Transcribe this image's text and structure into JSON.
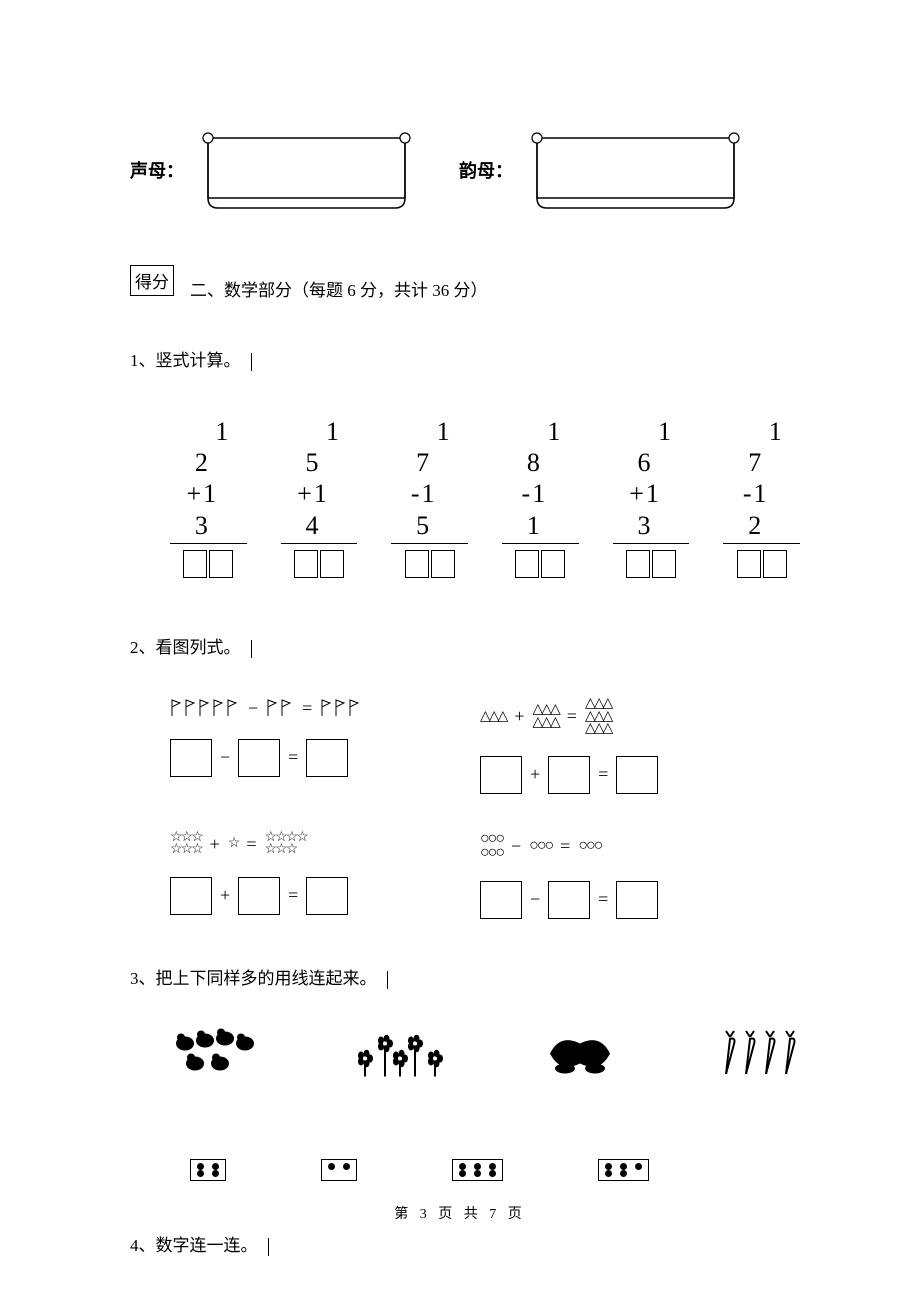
{
  "top": {
    "label_initials": "声母：",
    "label_finals": "韵母：",
    "scroll_stroke": "#000000",
    "scroll_fill": "#ffffff"
  },
  "score": {
    "label": "得分"
  },
  "section2": {
    "title": "二、数学部分（每题 6 分，共计 36 分）",
    "points_per": 6,
    "points_total": 36
  },
  "q1": {
    "label": "1、竖式计算。",
    "problems": [
      {
        "top": "1 2",
        "bottom": "1 3",
        "op": "+"
      },
      {
        "top": "1 5",
        "bottom": "1 4",
        "op": "+"
      },
      {
        "top": "1 7",
        "bottom": "1 5",
        "op": "-"
      },
      {
        "top": "1 8",
        "bottom": "1 1",
        "op": "-"
      },
      {
        "top": "1 6",
        "bottom": "1 3",
        "op": "+"
      },
      {
        "top": "1 7",
        "bottom": "1 2",
        "op": "-"
      }
    ],
    "digit_color": "#000000",
    "line_color": "#000000",
    "box_color": "#000000"
  },
  "q2": {
    "label": "2、看图列式。",
    "eq_minus": "−",
    "eq_plus": "+",
    "eq_equals": "=",
    "cells": [
      {
        "shape": "flag",
        "a_count": 5,
        "op": "−",
        "b_count": 2,
        "r_count": 3,
        "box_op": "−"
      },
      {
        "shape": "triangle",
        "a": [
          3
        ],
        "op": "+",
        "b": [
          3,
          3
        ],
        "r": [
          3,
          3,
          3
        ],
        "box_op": "+"
      },
      {
        "shape": "star",
        "a": [
          3,
          3
        ],
        "op": "+",
        "b": [
          1
        ],
        "r": [
          4,
          3
        ],
        "box_op": "+"
      },
      {
        "shape": "circle",
        "a": [
          3,
          3
        ],
        "op": "−",
        "b": [
          3
        ],
        "r": [
          3
        ],
        "box_op": "−"
      }
    ]
  },
  "q3": {
    "label": "3、把上下同样多的用线连起来。",
    "top_items": [
      {
        "kind": "chicks",
        "count": 6
      },
      {
        "kind": "flowers",
        "count": 5
      },
      {
        "kind": "roses",
        "count": 2
      },
      {
        "kind": "carrots",
        "count": 4
      }
    ],
    "dice": [
      {
        "rows": [
          [
            1,
            1
          ],
          [
            1,
            1
          ]
        ]
      },
      {
        "rows": [
          [
            1,
            1
          ]
        ]
      },
      {
        "rows": [
          [
            1,
            1,
            1
          ],
          [
            1,
            1,
            1
          ]
        ]
      },
      {
        "rows": [
          [
            1,
            1,
            1
          ],
          [
            1,
            1
          ]
        ]
      }
    ]
  },
  "q4": {
    "label": "4、数字连一连。"
  },
  "footer": {
    "prefix": "第",
    "current": "3",
    "middle": "页 共",
    "total": "7",
    "suffix": "页"
  },
  "colors": {
    "text": "#000000",
    "background": "#ffffff"
  }
}
